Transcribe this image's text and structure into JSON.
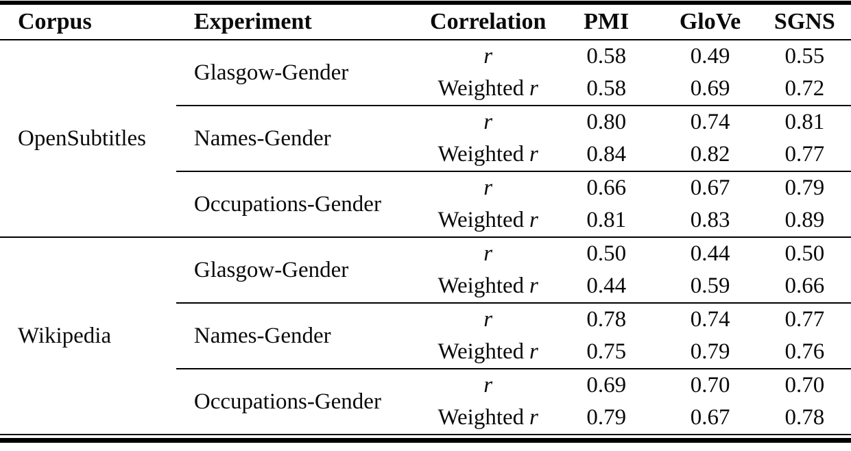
{
  "table": {
    "headers": [
      "Corpus",
      "Experiment",
      "Correlation",
      "PMI",
      "GloVe",
      "SGNS"
    ],
    "groups": [
      {
        "corpus": "OpenSubtitles",
        "experiments": [
          {
            "name": "Glasgow-Gender",
            "rows": [
              {
                "prefix": "",
                "symbol": "r",
                "values": [
                  "0.58",
                  "0.49",
                  "0.55"
                ]
              },
              {
                "prefix": "Weighted",
                "symbol": "r",
                "values": [
                  "0.58",
                  "0.69",
                  "0.72"
                ]
              }
            ]
          },
          {
            "name": "Names-Gender",
            "rows": [
              {
                "prefix": "",
                "symbol": "r",
                "values": [
                  "0.80",
                  "0.74",
                  "0.81"
                ]
              },
              {
                "prefix": "Weighted",
                "symbol": "r",
                "values": [
                  "0.84",
                  "0.82",
                  "0.77"
                ]
              }
            ]
          },
          {
            "name": "Occupations-Gender",
            "rows": [
              {
                "prefix": "",
                "symbol": "r",
                "values": [
                  "0.66",
                  "0.67",
                  "0.79"
                ]
              },
              {
                "prefix": "Weighted",
                "symbol": "r",
                "values": [
                  "0.81",
                  "0.83",
                  "0.89"
                ]
              }
            ]
          }
        ]
      },
      {
        "corpus": "Wikipedia",
        "experiments": [
          {
            "name": "Glasgow-Gender",
            "rows": [
              {
                "prefix": "",
                "symbol": "r",
                "values": [
                  "0.50",
                  "0.44",
                  "0.50"
                ]
              },
              {
                "prefix": "Weighted",
                "symbol": "r",
                "values": [
                  "0.44",
                  "0.59",
                  "0.66"
                ]
              }
            ]
          },
          {
            "name": "Names-Gender",
            "rows": [
              {
                "prefix": "",
                "symbol": "r",
                "values": [
                  "0.78",
                  "0.74",
                  "0.77"
                ]
              },
              {
                "prefix": "Weighted",
                "symbol": "r",
                "values": [
                  "0.75",
                  "0.79",
                  "0.76"
                ]
              }
            ]
          },
          {
            "name": "Occupations-Gender",
            "rows": [
              {
                "prefix": "",
                "symbol": "r",
                "values": [
                  "0.69",
                  "0.70",
                  "0.70"
                ]
              },
              {
                "prefix": "Weighted",
                "symbol": "r",
                "values": [
                  "0.79",
                  "0.67",
                  "0.78"
                ]
              }
            ]
          }
        ]
      }
    ],
    "colors": {
      "rule": "#000000",
      "text": "#0a0a0a",
      "background": "#ffffff"
    }
  }
}
